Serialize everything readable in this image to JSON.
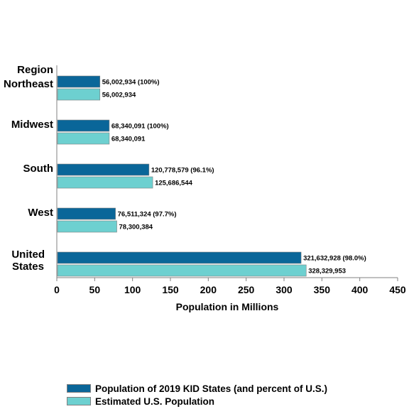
{
  "chart_data": {
    "type": "bar",
    "orientation": "horizontal",
    "title": "",
    "category_axis_title": "Region",
    "xlabel": "Population in Millions",
    "xlim": [
      0,
      450
    ],
    "xticks": [
      0,
      50,
      100,
      150,
      200,
      250,
      300,
      350,
      400,
      450
    ],
    "grid": false,
    "legend_position": "bottom",
    "categories": [
      "Northeast",
      "Midwest",
      "South",
      "West",
      "United States"
    ],
    "category_display": [
      [
        "Northeast"
      ],
      [
        "Midwest"
      ],
      [
        "South"
      ],
      [
        "West"
      ],
      [
        "United",
        "States"
      ]
    ],
    "series": [
      {
        "name": "Population of 2019 KID States (and percent of U.S.)",
        "color": "#0A6699",
        "values": [
          56.002934,
          68.340091,
          120.778579,
          76.511324,
          321.632928
        ],
        "labels": [
          "56,002,934 (100%)",
          "68,340,091 (100%)",
          "120,778,579 (96.1%)",
          "76,511,324 (97.7%)",
          "321,632,928 (98.0%)"
        ]
      },
      {
        "name": "Estimated U.S. Population",
        "color": "#6DD0D0",
        "values": [
          56.002934,
          68.340091,
          125.686544,
          78.300384,
          328.329953
        ],
        "labels": [
          "56,002,934",
          "68,340,091",
          "125,686,544",
          "78,300,384",
          "328,329,953"
        ]
      }
    ]
  }
}
